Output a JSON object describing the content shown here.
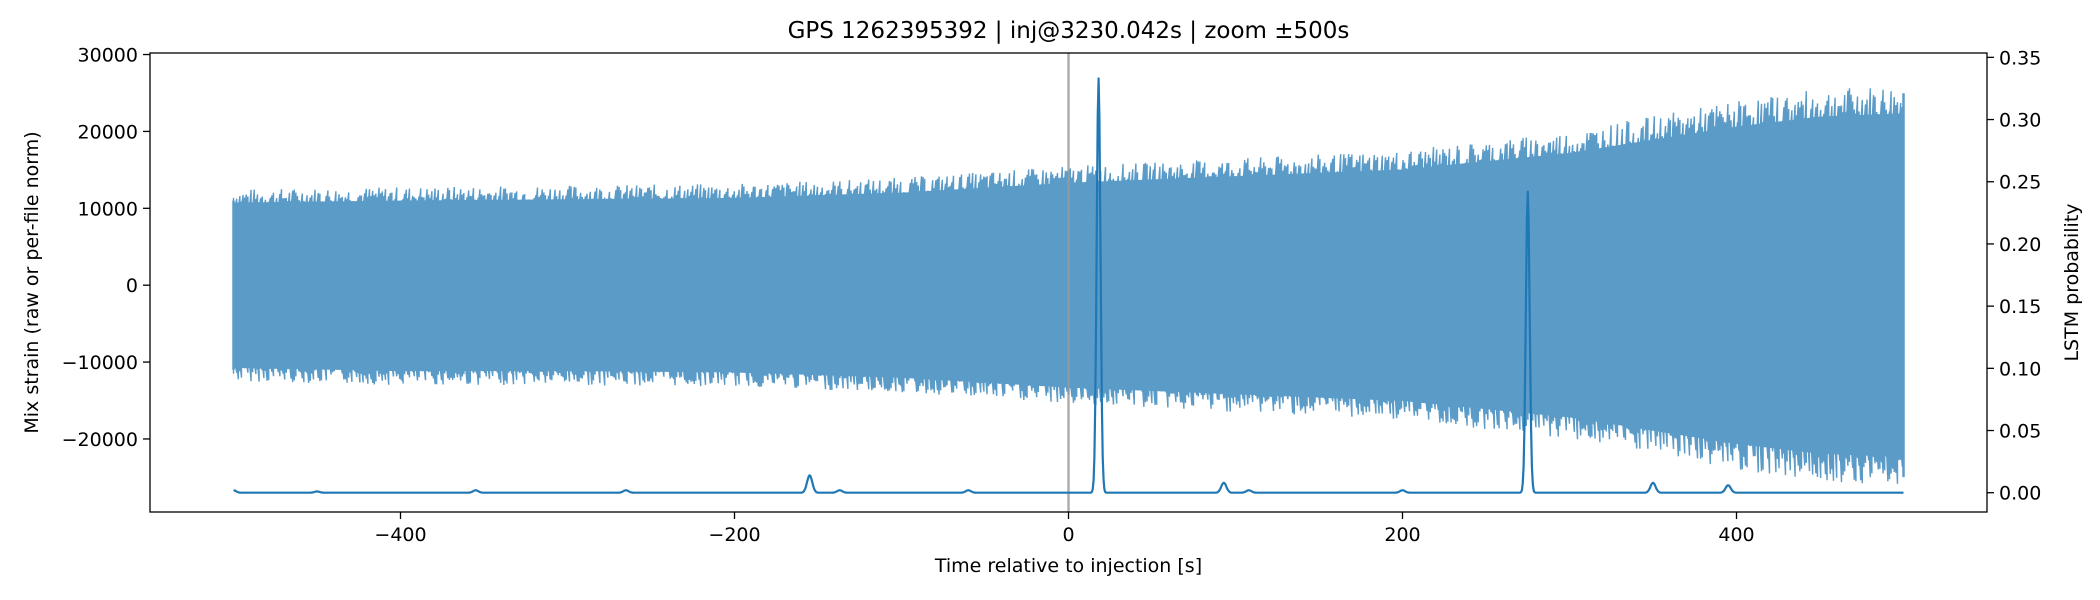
{
  "chart_data": {
    "type": "line",
    "title": "GPS 1262395392 | inj@3230.042s | zoom ±500s",
    "xlabel": "Time relative to injection [s]",
    "ylabel": "Mix strain (raw or per-file norm)",
    "y2label": "LSTM probability",
    "xlim": [
      -550,
      550
    ],
    "ylim": [
      -29500,
      30200
    ],
    "y2lim": [
      -0.0155,
      0.3535
    ],
    "x_ticks": [
      -400,
      -200,
      0,
      200,
      400
    ],
    "x_tick_labels": [
      "−400",
      "−200",
      "0",
      "200",
      "400"
    ],
    "y_ticks": [
      -20000,
      -10000,
      0,
      10000,
      20000,
      30000
    ],
    "y_tick_labels": [
      "−20000",
      "−10000",
      "0",
      "10000",
      "20000",
      "30000"
    ],
    "y2_ticks": [
      0.0,
      0.05,
      0.1,
      0.15,
      0.2,
      0.25,
      0.3,
      0.35
    ],
    "y2_tick_labels": [
      "0.00",
      "0.05",
      "0.10",
      "0.15",
      "0.20",
      "0.25",
      "0.30",
      "0.35"
    ],
    "grid": false,
    "injection_marker_x": 0,
    "strain_series": {
      "axis": "left",
      "color": "#5b9bc8",
      "x_range": [
        -500,
        500
      ],
      "envelope": {
        "x": [
          -500,
          -400,
          -300,
          -200,
          -100,
          0,
          100,
          200,
          300,
          400,
          450,
          500
        ],
        "upper": [
          12500,
          12800,
          13000,
          13200,
          14000,
          15500,
          16500,
          17500,
          20000,
          24000,
          25500,
          26000
        ],
        "lower": [
          -12500,
          -13000,
          -13000,
          -13200,
          -14000,
          -15500,
          -16500,
          -17500,
          -20000,
          -24000,
          -25500,
          -26000
        ]
      }
    },
    "probability_series": {
      "axis": "right",
      "color": "#1f77b4",
      "x_range": [
        -500,
        500
      ],
      "baseline": 0.0,
      "peaks": [
        {
          "x": -500,
          "y": 0.002
        },
        {
          "x": -450,
          "y": 0.001
        },
        {
          "x": -355,
          "y": 0.002
        },
        {
          "x": -265,
          "y": 0.002
        },
        {
          "x": -155,
          "y": 0.014
        },
        {
          "x": -137,
          "y": 0.002
        },
        {
          "x": -60,
          "y": 0.002
        },
        {
          "x": 18,
          "y": 0.333
        },
        {
          "x": 93,
          "y": 0.008
        },
        {
          "x": 108,
          "y": 0.002
        },
        {
          "x": 200,
          "y": 0.002
        },
        {
          "x": 275,
          "y": 0.242
        },
        {
          "x": 350,
          "y": 0.008
        },
        {
          "x": 395,
          "y": 0.006
        }
      ]
    }
  }
}
